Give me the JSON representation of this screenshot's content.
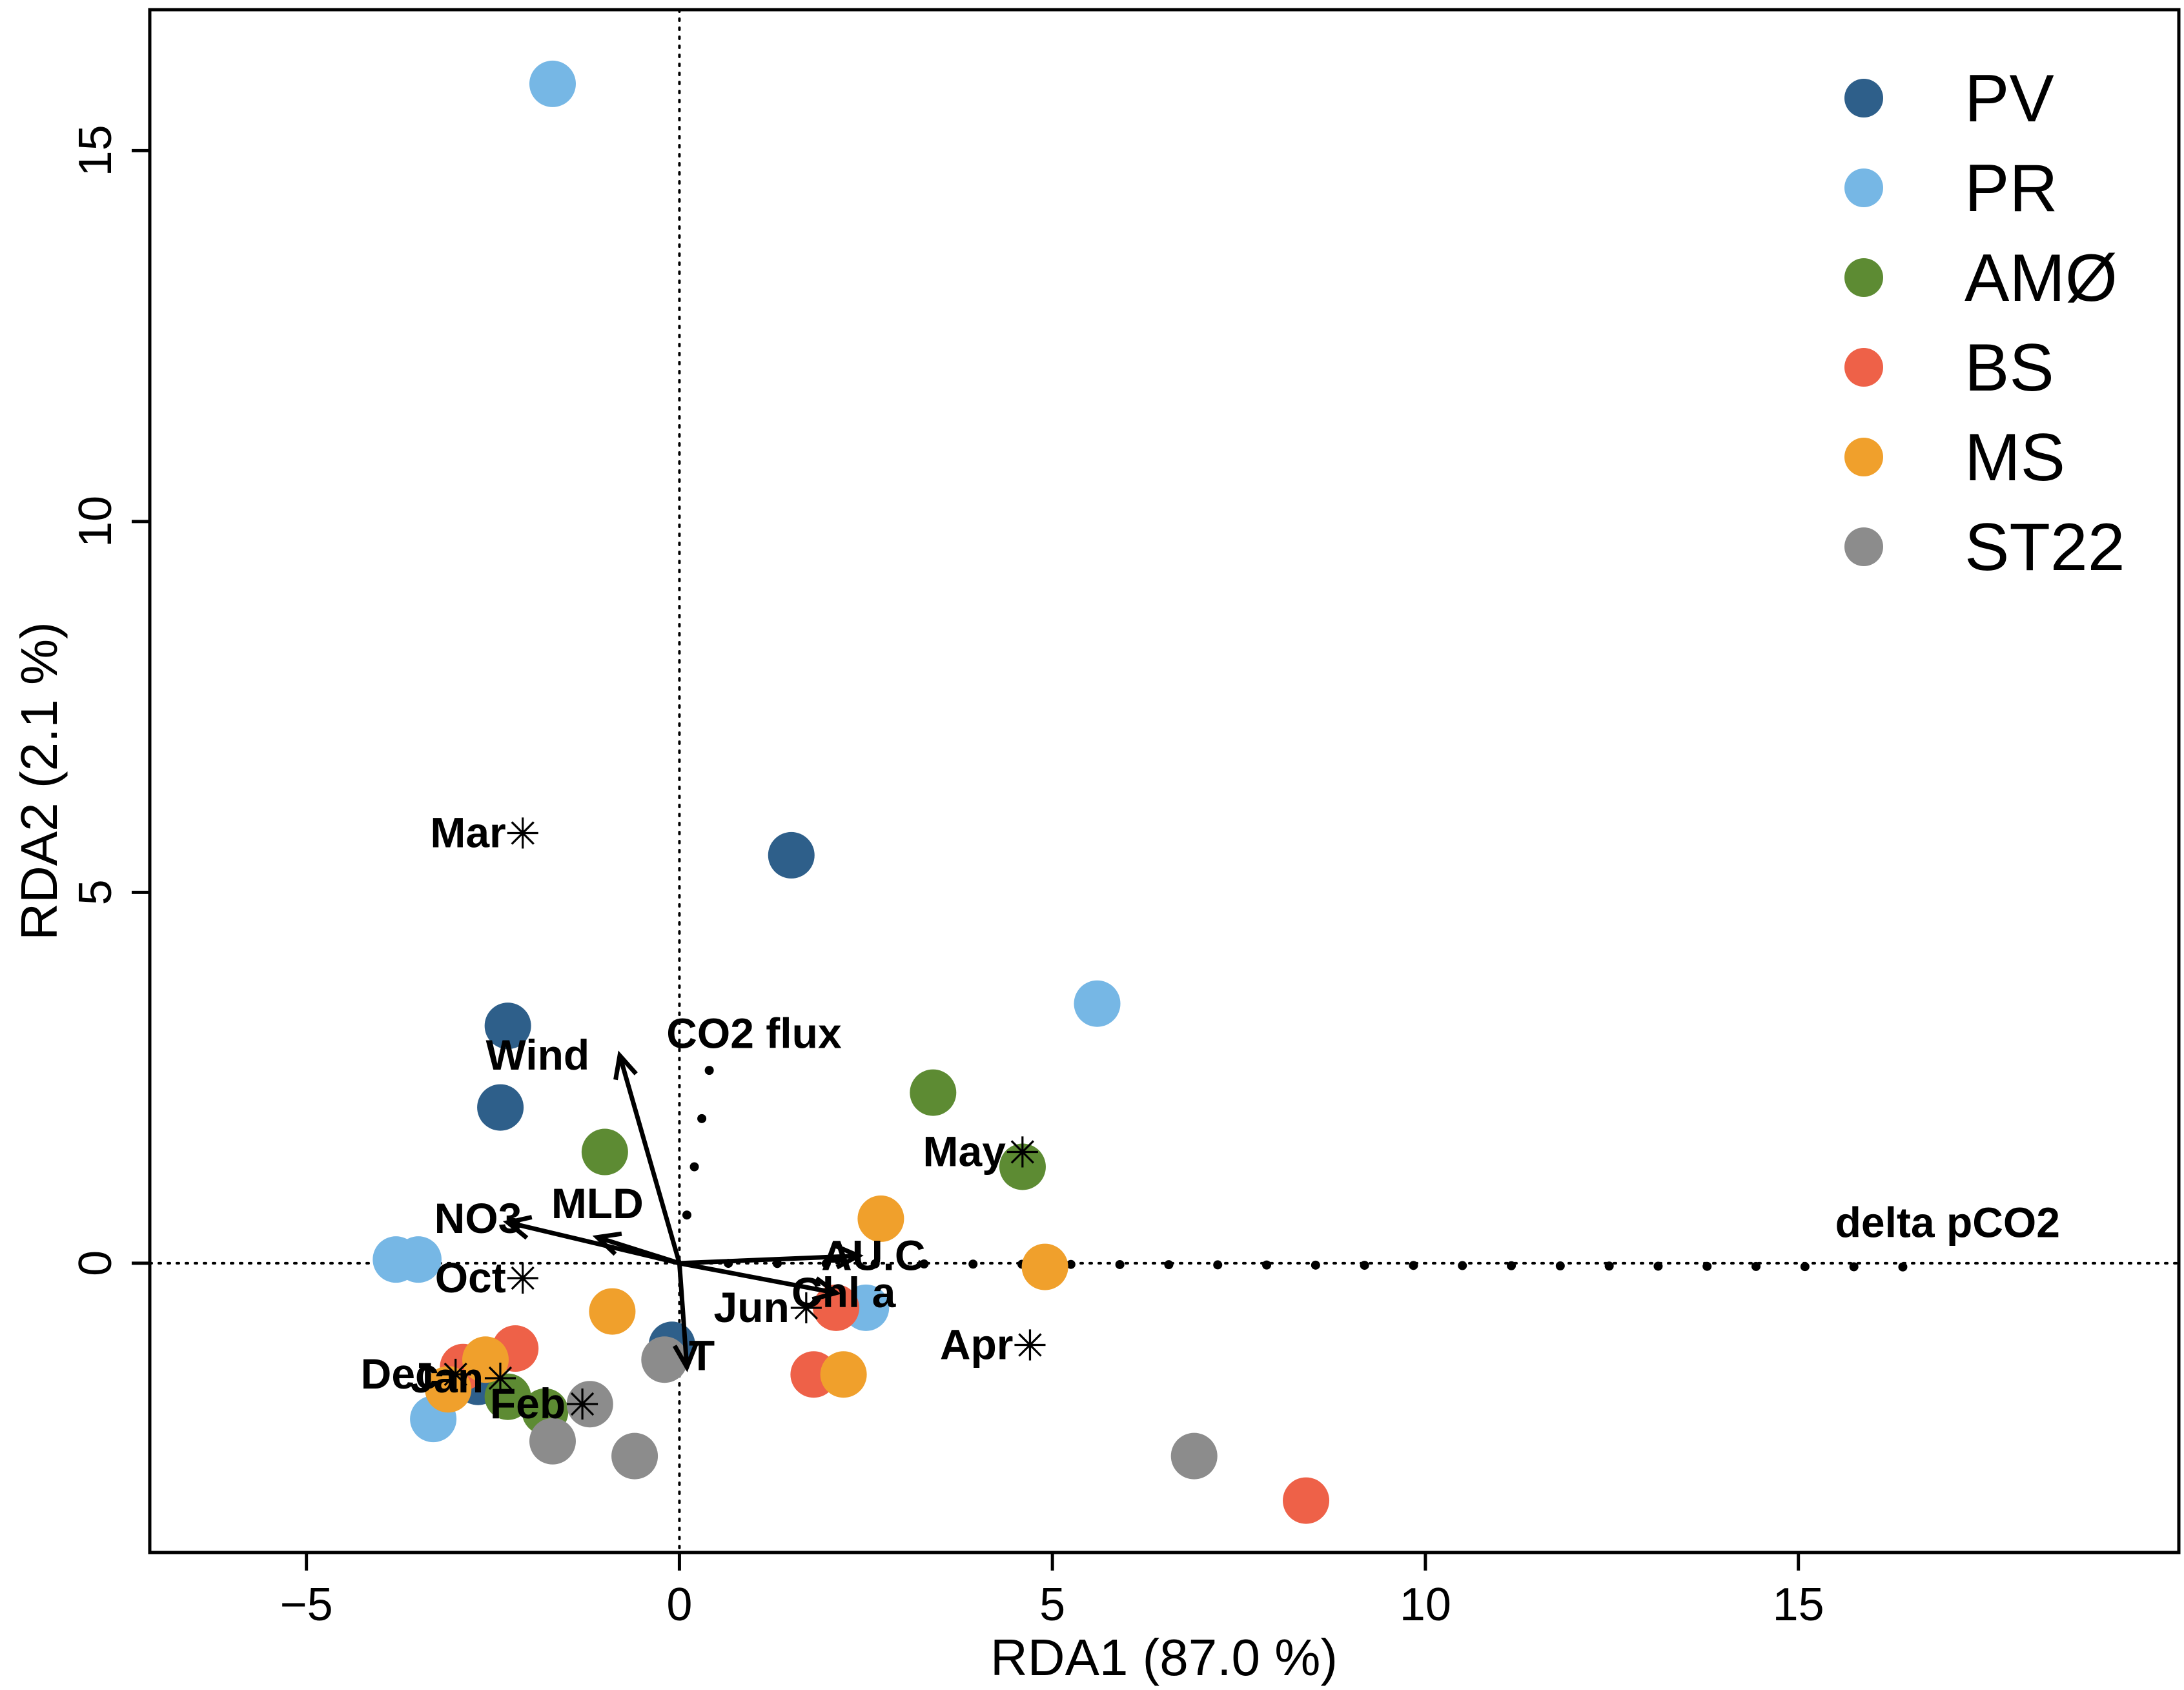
{
  "chart_data": {
    "type": "scatter",
    "xlabel": "RDA1 (87.0 %)",
    "ylabel": "RDA2 (2.1 %)",
    "xlim": [
      -7.1,
      20.1
    ],
    "ylim": [
      -3.9,
      16.9
    ],
    "xticks": [
      -5,
      0,
      5,
      10,
      15
    ],
    "yticks": [
      0,
      5,
      10,
      15
    ],
    "xtick_labels": [
      "−5",
      "0",
      "5",
      "10",
      "15"
    ],
    "ytick_labels": [
      "0",
      "5",
      "10",
      "15"
    ],
    "legend_position": "top-right",
    "series": [
      {
        "name": "PV",
        "color": "#2E5F8A",
        "points": [
          [
            -2.3,
            3.2
          ],
          [
            -2.4,
            2.1
          ],
          [
            1.5,
            5.5
          ],
          [
            -0.1,
            -1.1
          ],
          [
            -2.7,
            -1.6
          ]
        ]
      },
      {
        "name": "PR",
        "color": "#76B7E5",
        "points": [
          [
            -1.7,
            15.9
          ],
          [
            5.6,
            3.5
          ],
          [
            -3.8,
            0.05
          ],
          [
            -3.5,
            0.05
          ],
          [
            2.5,
            -0.6
          ],
          [
            -3.3,
            -2.1
          ]
        ]
      },
      {
        "name": "AMØ",
        "color": "#5D8B33",
        "points": [
          [
            3.4,
            2.3
          ],
          [
            4.6,
            1.3
          ],
          [
            -1.0,
            1.5
          ],
          [
            -2.3,
            -1.8
          ],
          [
            -1.8,
            -2.0
          ]
        ]
      },
      {
        "name": "BS",
        "color": "#EE6148",
        "points": [
          [
            2.1,
            -0.6
          ],
          [
            1.8,
            -1.5
          ],
          [
            -2.2,
            -1.15
          ],
          [
            -2.9,
            -1.4
          ],
          [
            8.4,
            -3.2
          ]
        ]
      },
      {
        "name": "MS",
        "color": "#F0A02C",
        "points": [
          [
            2.7,
            0.6
          ],
          [
            4.9,
            -0.05
          ],
          [
            -0.9,
            -0.65
          ],
          [
            2.2,
            -1.5
          ],
          [
            -2.6,
            -1.3
          ],
          [
            -3.1,
            -1.7
          ]
        ]
      },
      {
        "name": "ST22",
        "color": "#8C8C8C",
        "points": [
          [
            -0.2,
            -1.3
          ],
          [
            -1.7,
            -2.4
          ],
          [
            -0.6,
            -2.6
          ],
          [
            6.9,
            -2.6
          ],
          [
            -1.2,
            -1.9
          ]
        ]
      }
    ],
    "env_vectors": [
      {
        "name": "Wind",
        "x": -0.8,
        "y": 2.8,
        "label_x": -1.9,
        "label_y": 2.8
      },
      {
        "name": "NO3",
        "x": -2.3,
        "y": 0.55,
        "label_x": -2.7,
        "label_y": 0.6
      },
      {
        "name": "MLD",
        "x": -1.1,
        "y": 0.35,
        "label_x": -1.1,
        "label_y": 0.8
      },
      {
        "name": "AU.C",
        "x": 2.4,
        "y": 0.1,
        "label_x": 2.6,
        "label_y": 0.1
      },
      {
        "name": "Chl a",
        "x": 2.1,
        "y": -0.4,
        "label_x": 2.2,
        "label_y": -0.4
      },
      {
        "name": "T",
        "x": 0.1,
        "y": -1.4,
        "label_x": 0.3,
        "label_y": -1.25
      }
    ],
    "dotted_vectors": [
      {
        "name": "CO2 flux",
        "x": 0.4,
        "y": 2.6,
        "label_x": 1.0,
        "label_y": 2.9
      },
      {
        "name": "delta pCO2",
        "x": 16.4,
        "y": -0.05,
        "label_x": 17.0,
        "label_y": 0.35
      }
    ],
    "months": [
      {
        "name": "Mar",
        "x": -2.1,
        "y": 5.8
      },
      {
        "name": "May",
        "x": 4.6,
        "y": 1.5
      },
      {
        "name": "Oct",
        "x": -2.1,
        "y": -0.2
      },
      {
        "name": "Jun",
        "x": 1.7,
        "y": -0.6
      },
      {
        "name": "Apr",
        "x": 4.7,
        "y": -1.1
      },
      {
        "name": "Dec",
        "x": -3.0,
        "y": -1.5
      },
      {
        "name": "Jan",
        "x": -2.4,
        "y": -1.55
      },
      {
        "name": "Feb",
        "x": -1.3,
        "y": -1.9
      }
    ]
  }
}
